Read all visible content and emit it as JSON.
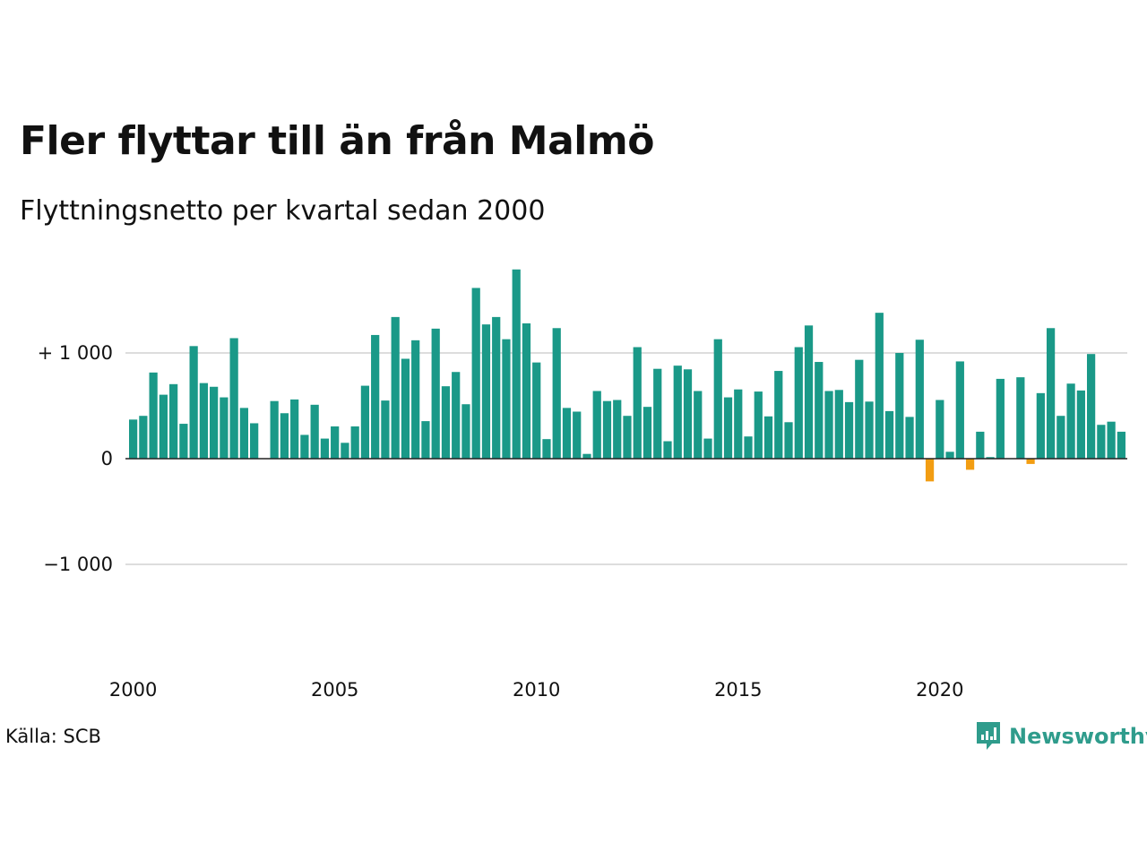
{
  "header": {
    "title": "Fler flyttar till än från Malmö",
    "subtitle": "Flyttningsnetto per kvartal sedan 2000"
  },
  "footer": {
    "source": "Källa: SCB",
    "brand": "Newsworthy"
  },
  "colors": {
    "positive": "#1a9988",
    "negative": "#f29d12",
    "grid": "#dddddd",
    "brand": "#2f9c8c"
  },
  "icons": {
    "brand": "newsworthy-logo-icon"
  },
  "chart_data": {
    "type": "bar",
    "start_year": 2000,
    "quarters_per_year": 4,
    "values": [
      370,
      405,
      815,
      605,
      705,
      330,
      1065,
      715,
      680,
      580,
      1140,
      480,
      335,
      0,
      545,
      430,
      560,
      225,
      510,
      190,
      305,
      150,
      305,
      690,
      1170,
      550,
      1340,
      945,
      1120,
      355,
      1230,
      685,
      820,
      515,
      1615,
      1270,
      1340,
      1130,
      1790,
      1280,
      910,
      185,
      1235,
      480,
      445,
      45,
      640,
      545,
      555,
      405,
      1055,
      490,
      850,
      165,
      880,
      845,
      640,
      190,
      1130,
      580,
      655,
      210,
      635,
      400,
      830,
      345,
      1055,
      1260,
      915,
      640,
      650,
      535,
      935,
      540,
      1380,
      450,
      1000,
      395,
      1125,
      -215,
      555,
      65,
      920,
      -105,
      255,
      15,
      755,
      0,
      770,
      -50,
      620,
      1235,
      405,
      710,
      645,
      990,
      320,
      350,
      255
    ],
    "ylim": [
      -1500,
      1850
    ],
    "yticks": [
      {
        "value": 1000,
        "label": "+ 1 000"
      },
      {
        "value": 0,
        "label": "0"
      },
      {
        "value": -1000,
        "label": "−1 000"
      }
    ],
    "xticks": [
      "2000",
      "2005",
      "2010",
      "2015",
      "2020"
    ],
    "grid": true,
    "xlabel": "",
    "ylabel": ""
  }
}
